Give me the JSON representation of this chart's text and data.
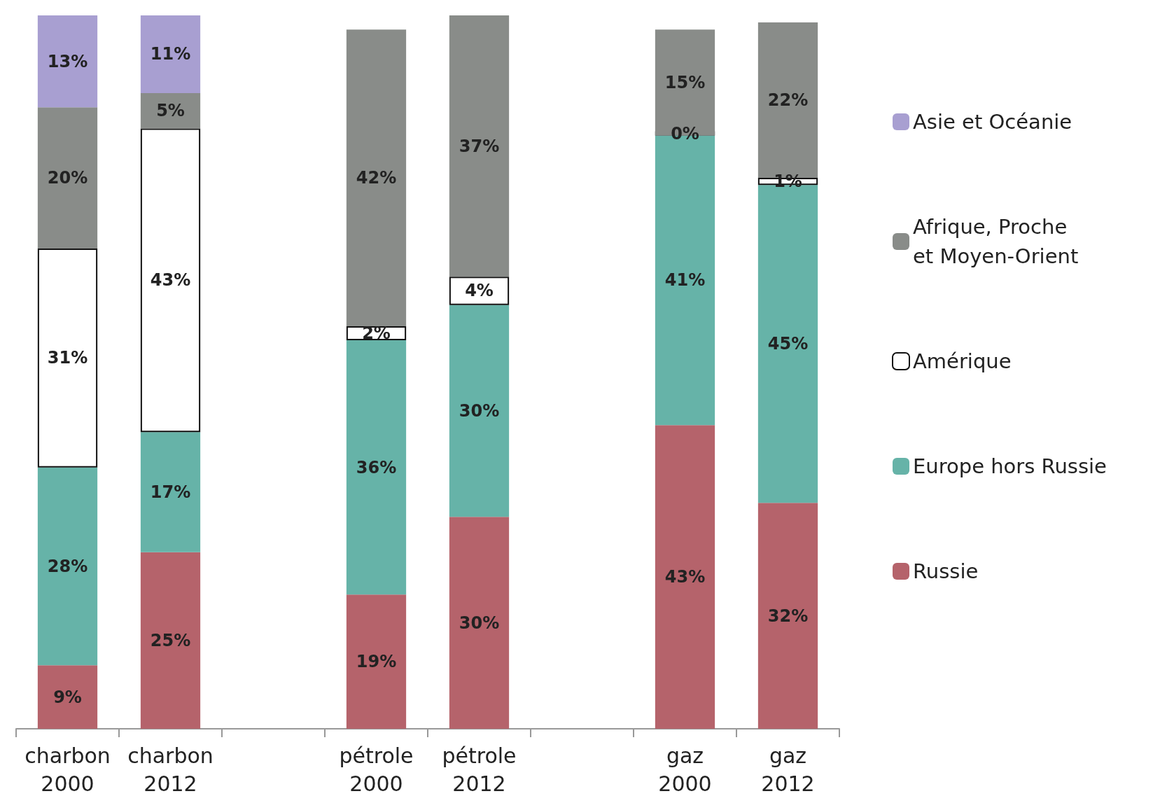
{
  "chart_data": {
    "type": "bar",
    "stacked": true,
    "legend": "right",
    "tick_labels": "x",
    "categories": [
      "charbon 2000",
      "charbon 2012",
      null,
      "pétrole 2000",
      "pétrole 2012",
      null,
      "gaz 2000",
      "gaz 2012"
    ],
    "series": [
      {
        "name": "Russie",
        "color": "#b5636b",
        "values": [
          9,
          25,
          null,
          19,
          30,
          null,
          43,
          32
        ],
        "value_labels": [
          "9%",
          "25%",
          null,
          "19%",
          "30%",
          null,
          "43%",
          "32%"
        ]
      },
      {
        "name": "Europe hors Russie",
        "color": "#66b3a8",
        "values": [
          28,
          17,
          null,
          36,
          30,
          null,
          41,
          45
        ],
        "value_labels": [
          "28%",
          "17%",
          null,
          "36%",
          "30%",
          null,
          "41%",
          "45%"
        ]
      },
      {
        "name": "Amérique",
        "color": "#ffffff",
        "values": [
          31,
          43,
          null,
          2,
          4,
          null,
          0,
          1
        ],
        "value_labels": [
          "31%",
          "43%",
          null,
          "2%",
          "4%",
          null,
          "0%",
          "1%"
        ]
      },
      {
        "name": "Afrique, Proche  et Moyen-Orient",
        "color": "#898c89",
        "values": [
          20,
          5,
          null,
          42,
          37,
          null,
          15,
          22
        ],
        "value_labels": [
          "20%",
          "5%",
          null,
          "42%",
          "37%",
          null,
          "15%",
          "22%"
        ]
      },
      {
        "name": "Asie et Océanie",
        "color": "#a89fd1",
        "values": [
          13,
          11,
          null,
          null,
          null,
          null,
          null,
          null
        ],
        "value_labels": [
          "13%",
          "11%",
          null,
          null,
          null,
          null,
          null,
          null
        ]
      }
    ]
  }
}
